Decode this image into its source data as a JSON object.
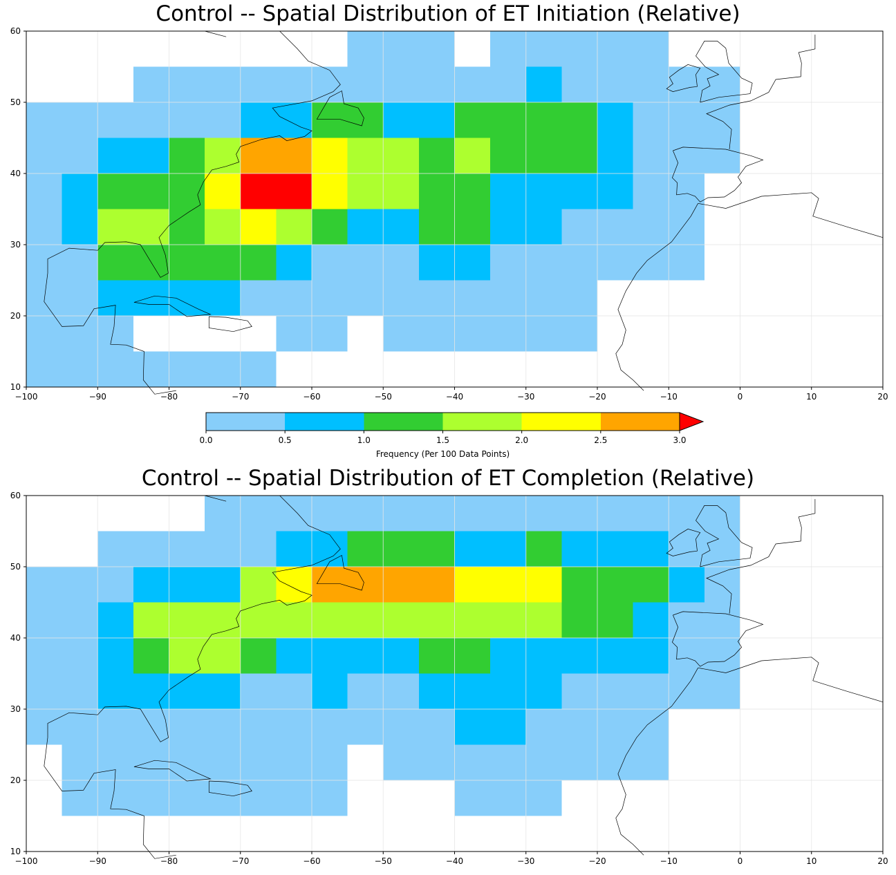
{
  "panels": [
    {
      "title": "Control -- Spatial Distribution of ET Initiation (Relative)",
      "x_ticks": [
        "−100",
        "−90",
        "−80",
        "−70",
        "−60",
        "−50",
        "−40",
        "−30",
        "−20",
        "−10",
        "0",
        "10",
        "20"
      ],
      "y_ticks": [
        "10",
        "20",
        "30",
        "40",
        "50",
        "60"
      ]
    },
    {
      "title": "Control -- Spatial Distribution of ET Completion (Relative)",
      "x_ticks": [
        "−100",
        "−90",
        "−80",
        "−70",
        "−60",
        "−50",
        "−40",
        "−30",
        "−20",
        "−10",
        "0",
        "10",
        "20"
      ],
      "y_ticks": [
        "10",
        "20",
        "30",
        "40",
        "50",
        "60"
      ]
    }
  ],
  "colorbar": {
    "label": "Frequency (Per 100 Data Points)",
    "ticks": [
      "0.0",
      "0.5",
      "1.0",
      "1.5",
      "2.0",
      "2.5",
      "3.0"
    ],
    "colors": [
      "#87cefa",
      "#00bfff",
      "#32cd32",
      "#adff2f",
      "#ffff00",
      "#ffa500",
      "#ff0000"
    ]
  },
  "chart_data": [
    {
      "type": "heatmap",
      "title": "Control -- Spatial Distribution of ET Initiation (Relative)",
      "xlim": [
        -100,
        20
      ],
      "ylim": [
        10,
        60
      ],
      "cell_size_deg": 5,
      "value_scale": "frequency class 0-6 (0: 0-0.5, 1: 0.5-1.0, 2: 1.0-1.5, 3: 1.5-2.0, 4: 2.0-2.5, 5: 2.5-3.0, 6: >3.0)",
      "rows": [
        {
          "lat_range": [
            55,
            60
          ],
          "cells": [
            {
              "lon": [
                -55,
                -40
              ],
              "v": 0
            },
            {
              "lon": [
                -35,
                -10
              ],
              "v": 0
            }
          ]
        },
        {
          "lat_range": [
            50,
            55
          ],
          "cells": [
            {
              "lon": [
                -85,
                -30
              ],
              "v": 0
            },
            {
              "lon": [
                -30,
                -25
              ],
              "v": 1
            },
            {
              "lon": [
                -25,
                0
              ],
              "v": 0
            }
          ]
        },
        {
          "lat_range": [
            45,
            50
          ],
          "cells": [
            {
              "lon": [
                -100,
                -70
              ],
              "v": 0
            },
            {
              "lon": [
                -70,
                -60
              ],
              "v": 1
            },
            {
              "lon": [
                -60,
                -50
              ],
              "v": 2
            },
            {
              "lon": [
                -50,
                -40
              ],
              "v": 1
            },
            {
              "lon": [
                -40,
                -20
              ],
              "v": 2
            },
            {
              "lon": [
                -20,
                -15
              ],
              "v": 1
            },
            {
              "lon": [
                -15,
                0
              ],
              "v": 0
            }
          ]
        },
        {
          "lat_range": [
            40,
            45
          ],
          "cells": [
            {
              "lon": [
                -100,
                -90
              ],
              "v": 0
            },
            {
              "lon": [
                -90,
                -80
              ],
              "v": 1
            },
            {
              "lon": [
                -80,
                -75
              ],
              "v": 2
            },
            {
              "lon": [
                -75,
                -70
              ],
              "v": 3
            },
            {
              "lon": [
                -70,
                -60
              ],
              "v": 5
            },
            {
              "lon": [
                -60,
                -55
              ],
              "v": 4
            },
            {
              "lon": [
                -55,
                -45
              ],
              "v": 3
            },
            {
              "lon": [
                -45,
                -40
              ],
              "v": 2
            },
            {
              "lon": [
                -40,
                -35
              ],
              "v": 3
            },
            {
              "lon": [
                -35,
                -20
              ],
              "v": 2
            },
            {
              "lon": [
                -20,
                -15
              ],
              "v": 1
            },
            {
              "lon": [
                -15,
                0
              ],
              "v": 0
            }
          ]
        },
        {
          "lat_range": [
            35,
            40
          ],
          "cells": [
            {
              "lon": [
                -95,
                -90
              ],
              "v": 1
            },
            {
              "lon": [
                -90,
                -75
              ],
              "v": 2
            },
            {
              "lon": [
                -75,
                -70
              ],
              "v": 4
            },
            {
              "lon": [
                -70,
                -60
              ],
              "v": 6
            },
            {
              "lon": [
                -60,
                -55
              ],
              "v": 4
            },
            {
              "lon": [
                -55,
                -45
              ],
              "v": 3
            },
            {
              "lon": [
                -45,
                -35
              ],
              "v": 2
            },
            {
              "lon": [
                -35,
                -15
              ],
              "v": 1
            },
            {
              "lon": [
                -15,
                -5
              ],
              "v": 0
            }
          ]
        },
        {
          "lat_range": [
            30,
            35
          ],
          "cells": [
            {
              "lon": [
                -95,
                -90
              ],
              "v": 1
            },
            {
              "lon": [
                -90,
                -80
              ],
              "v": 3
            },
            {
              "lon": [
                -80,
                -75
              ],
              "v": 2
            },
            {
              "lon": [
                -75,
                -70
              ],
              "v": 3
            },
            {
              "lon": [
                -70,
                -65
              ],
              "v": 4
            },
            {
              "lon": [
                -65,
                -60
              ],
              "v": 3
            },
            {
              "lon": [
                -60,
                -55
              ],
              "v": 2
            },
            {
              "lon": [
                -55,
                -45
              ],
              "v": 1
            },
            {
              "lon": [
                -45,
                -35
              ],
              "v": 2
            },
            {
              "lon": [
                -35,
                -25
              ],
              "v": 1
            },
            {
              "lon": [
                -25,
                -5
              ],
              "v": 0
            }
          ]
        },
        {
          "lat_range": [
            25,
            30
          ],
          "cells": [
            {
              "lon": [
                -90,
                -65
              ],
              "v": 2
            },
            {
              "lon": [
                -65,
                -60
              ],
              "v": 1
            },
            {
              "lon": [
                -60,
                -45
              ],
              "v": 0
            },
            {
              "lon": [
                -45,
                -35
              ],
              "v": 1
            },
            {
              "lon": [
                -35,
                -5
              ],
              "v": 0
            }
          ]
        },
        {
          "lat_range": [
            20,
            25
          ],
          "cells": [
            {
              "lon": [
                -90,
                -70
              ],
              "v": 1
            },
            {
              "lon": [
                -70,
                -20
              ],
              "v": 0
            }
          ]
        },
        {
          "lat_range": [
            15,
            20
          ],
          "cells": [
            {
              "lon": [
                -65,
                -55
              ],
              "v": 0
            },
            {
              "lon": [
                -50,
                -20
              ],
              "v": 0
            }
          ]
        },
        {
          "lat_range": [
            10,
            15
          ],
          "cells": [
            {
              "lon": [
                -100,
                -65
              ],
              "v": 0
            }
          ]
        }
      ],
      "extra_blocks": [
        {
          "lon": [
            -100,
            -85
          ],
          "lat": [
            10,
            50
          ],
          "v": 0
        },
        {
          "lon": [
            -100,
            -90
          ],
          "lat": [
            10,
            25
          ],
          "v": 0
        }
      ]
    },
    {
      "type": "heatmap",
      "title": "Control -- Spatial Distribution of ET Completion (Relative)",
      "xlim": [
        -100,
        20
      ],
      "ylim": [
        10,
        60
      ],
      "cell_size_deg": 5,
      "value_scale": "frequency class 0-6 (0: 0-0.5, 1: 0.5-1.0, 2: 1.0-1.5, 3: 1.5-2.0, 4: 2.0-2.5, 5: 2.5-3.0, 6: >3.0)",
      "rows": [
        {
          "lat_range": [
            55,
            60
          ],
          "cells": [
            {
              "lon": [
                -75,
                0
              ],
              "v": 0
            }
          ]
        },
        {
          "lat_range": [
            50,
            55
          ],
          "cells": [
            {
              "lon": [
                -90,
                -65
              ],
              "v": 0
            },
            {
              "lon": [
                -65,
                -55
              ],
              "v": 1
            },
            {
              "lon": [
                -55,
                -40
              ],
              "v": 2
            },
            {
              "lon": [
                -40,
                -30
              ],
              "v": 1
            },
            {
              "lon": [
                -30,
                -25
              ],
              "v": 2
            },
            {
              "lon": [
                -25,
                -10
              ],
              "v": 1
            },
            {
              "lon": [
                -10,
                0
              ],
              "v": 0
            }
          ]
        },
        {
          "lat_range": [
            45,
            50
          ],
          "cells": [
            {
              "lon": [
                -100,
                -85
              ],
              "v": 0
            },
            {
              "lon": [
                -85,
                -70
              ],
              "v": 1
            },
            {
              "lon": [
                -70,
                -65
              ],
              "v": 3
            },
            {
              "lon": [
                -65,
                -60
              ],
              "v": 4
            },
            {
              "lon": [
                -60,
                -40
              ],
              "v": 5
            },
            {
              "lon": [
                -40,
                -25
              ],
              "v": 4
            },
            {
              "lon": [
                -25,
                -10
              ],
              "v": 2
            },
            {
              "lon": [
                -10,
                -5
              ],
              "v": 1
            },
            {
              "lon": [
                -5,
                0
              ],
              "v": 0
            }
          ]
        },
        {
          "lat_range": [
            40,
            45
          ],
          "cells": [
            {
              "lon": [
                -100,
                -90
              ],
              "v": 0
            },
            {
              "lon": [
                -90,
                -85
              ],
              "v": 1
            },
            {
              "lon": [
                -85,
                -25
              ],
              "v": 3
            },
            {
              "lon": [
                -25,
                -15
              ],
              "v": 2
            },
            {
              "lon": [
                -15,
                -10
              ],
              "v": 1
            },
            {
              "lon": [
                -10,
                0
              ],
              "v": 0
            }
          ]
        },
        {
          "lat_range": [
            35,
            40
          ],
          "cells": [
            {
              "lon": [
                -100,
                -90
              ],
              "v": 0
            },
            {
              "lon": [
                -90,
                -85
              ],
              "v": 1
            },
            {
              "lon": [
                -85,
                -80
              ],
              "v": 2
            },
            {
              "lon": [
                -80,
                -70
              ],
              "v": 3
            },
            {
              "lon": [
                -70,
                -65
              ],
              "v": 2
            },
            {
              "lon": [
                -65,
                -45
              ],
              "v": 1
            },
            {
              "lon": [
                -45,
                -35
              ],
              "v": 2
            },
            {
              "lon": [
                -35,
                -10
              ],
              "v": 1
            },
            {
              "lon": [
                -10,
                0
              ],
              "v": 0
            }
          ]
        },
        {
          "lat_range": [
            30,
            35
          ],
          "cells": [
            {
              "lon": [
                -100,
                -90
              ],
              "v": 0
            },
            {
              "lon": [
                -90,
                -70
              ],
              "v": 1
            },
            {
              "lon": [
                -70,
                -60
              ],
              "v": 0
            },
            {
              "lon": [
                -60,
                -55
              ],
              "v": 1
            },
            {
              "lon": [
                -55,
                -45
              ],
              "v": 0
            },
            {
              "lon": [
                -45,
                -25
              ],
              "v": 1
            },
            {
              "lon": [
                -25,
                0
              ],
              "v": 0
            }
          ]
        },
        {
          "lat_range": [
            25,
            30
          ],
          "cells": [
            {
              "lon": [
                -100,
                -40
              ],
              "v": 0
            },
            {
              "lon": [
                -40,
                -30
              ],
              "v": 1
            },
            {
              "lon": [
                -30,
                -10
              ],
              "v": 0
            }
          ]
        },
        {
          "lat_range": [
            20,
            25
          ],
          "cells": [
            {
              "lon": [
                -95,
                -55
              ],
              "v": 0
            },
            {
              "lon": [
                -50,
                -10
              ],
              "v": 0
            }
          ]
        },
        {
          "lat_range": [
            15,
            20
          ],
          "cells": [
            {
              "lon": [
                -95,
                -55
              ],
              "v": 0
            },
            {
              "lon": [
                -40,
                -25
              ],
              "v": 0
            }
          ]
        }
      ],
      "extra_blocks": []
    }
  ]
}
